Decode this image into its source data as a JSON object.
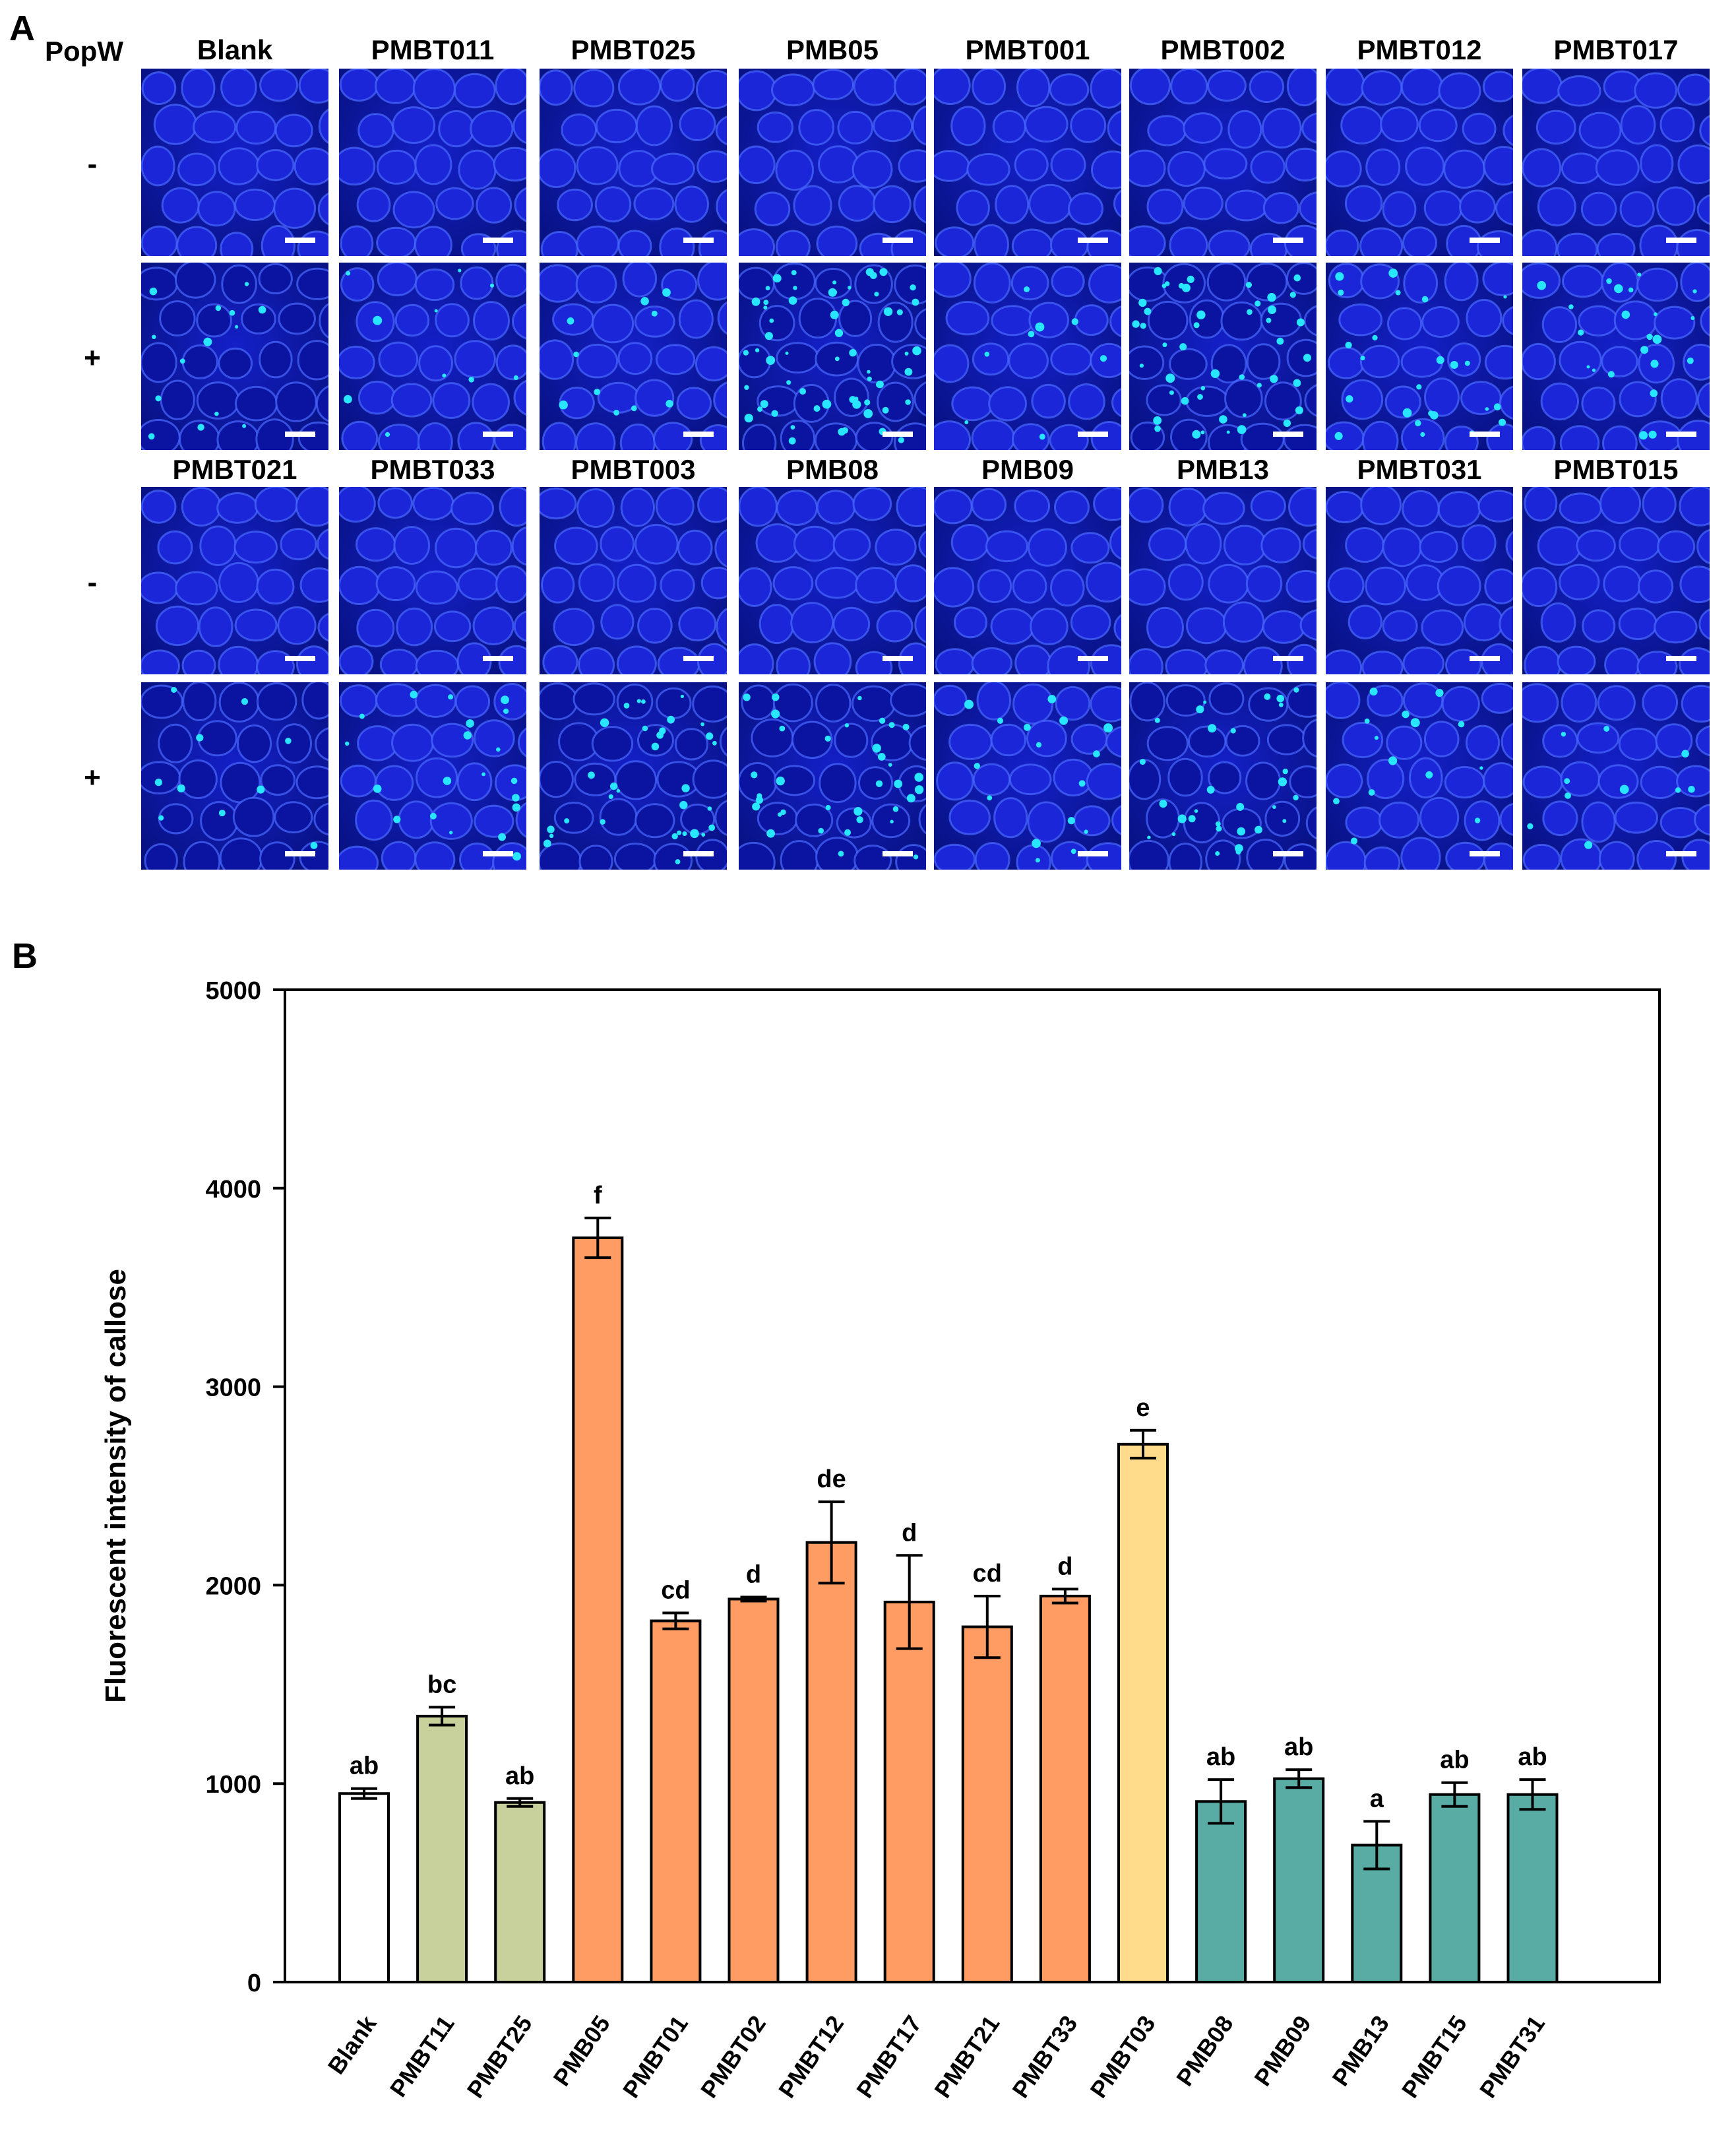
{
  "panel_a": {
    "letter": "A",
    "treatment_label": "PopW",
    "minus_label": "-",
    "plus_label": "+",
    "rows": [
      {
        "labels": [
          "Blank",
          "PMBT011",
          "PMBT025",
          "PMB05",
          "PMBT001",
          "PMBT002",
          "PMBT012",
          "PMBT017"
        ],
        "plus_spots": [
          14,
          10,
          10,
          60,
          8,
          46,
          24,
          22
        ]
      },
      {
        "labels": [
          "PMBT021",
          "PMBT033",
          "PMBT003",
          "PMB08",
          "PMB09",
          "PMB13",
          "PMBT031",
          "PMBT015"
        ],
        "plus_spots": [
          10,
          20,
          32,
          36,
          16,
          30,
          14,
          10
        ]
      }
    ],
    "colors": {
      "tile_base": "#1420c8",
      "tile_dark": "#06107a",
      "cell_wall": "#4a6aff",
      "spot": "#28e6ff",
      "scale_bar": "#ffffff"
    }
  },
  "panel_b": {
    "letter": "B"
  },
  "chart_data": {
    "type": "bar",
    "title": "",
    "xlabel": "",
    "ylabel": "Fluorescent intensity of callose",
    "ylim": [
      0,
      5000
    ],
    "yticks": [
      0,
      1000,
      2000,
      3000,
      4000,
      5000
    ],
    "categories": [
      "Blank",
      "PMBT11",
      "PMBT25",
      "PMB05",
      "PMBT01",
      "PMBT02",
      "PMBT12",
      "PMBT17",
      "PMBT21",
      "PMBT33",
      "PMBT03",
      "PMB08",
      "PMB09",
      "PMB13",
      "PMBT15",
      "PMBT31"
    ],
    "values": [
      950,
      1340,
      905,
      3750,
      1820,
      1930,
      2215,
      1915,
      1790,
      1945,
      2710,
      910,
      1025,
      690,
      945,
      945
    ],
    "errors": [
      25,
      45,
      20,
      100,
      40,
      10,
      205,
      235,
      155,
      35,
      70,
      110,
      45,
      120,
      60,
      75
    ],
    "significance": [
      "ab",
      "bc",
      "ab",
      "f",
      "cd",
      "d",
      "de",
      "d",
      "cd",
      "d",
      "e",
      "ab",
      "ab",
      "a",
      "ab",
      "ab"
    ],
    "bar_colors": [
      "#ffffff",
      "#c8d09c",
      "#c8d09c",
      "#ff9c64",
      "#ff9c64",
      "#ff9c64",
      "#ff9c64",
      "#ff9c64",
      "#ff9c64",
      "#ff9c64",
      "#ffdc8c",
      "#58aca4",
      "#58aca4",
      "#58aca4",
      "#58aca4",
      "#58aca4"
    ],
    "grid": false,
    "legend": "none"
  }
}
